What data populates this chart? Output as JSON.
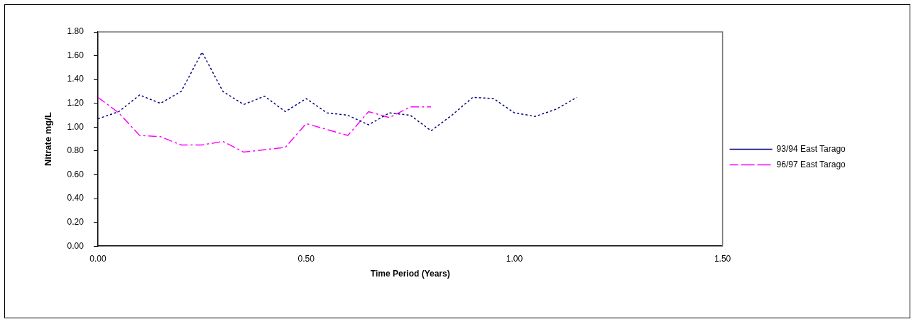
{
  "chart_data": {
    "type": "line",
    "xlabel": "Time Period (Years)",
    "ylabel": "Nitrate mg/L",
    "xlim": [
      0,
      1.5
    ],
    "xticks": [
      {
        "value": 0,
        "label": "0.00"
      },
      {
        "value": 0.5,
        "label": "0.50"
      },
      {
        "value": 1,
        "label": "1.00"
      },
      {
        "value": 1.5,
        "label": "1.50"
      }
    ],
    "ylim": [
      0,
      1.8
    ],
    "yticks": [
      {
        "value": 0,
        "label": "0.00"
      },
      {
        "value": 0.2,
        "label": "0.20"
      },
      {
        "value": 0.4,
        "label": "0.40"
      },
      {
        "value": 0.6,
        "label": "0.60"
      },
      {
        "value": 0.8,
        "label": "0.80"
      },
      {
        "value": 1,
        "label": "1.00"
      },
      {
        "value": 1.2,
        "label": "1.20"
      },
      {
        "value": 1.4,
        "label": "1.40"
      },
      {
        "value": 1.6,
        "label": "1.60"
      },
      {
        "value": 1.8,
        "label": "1.80"
      }
    ],
    "grid": false,
    "legend": "right",
    "marker": "none",
    "series": [
      {
        "name": "93/94 East Tarago",
        "color": "#000080",
        "line_style": "dotted",
        "x": [
          0,
          0.05,
          0.1,
          0.15,
          0.2,
          0.25,
          0.3,
          0.35,
          0.4,
          0.45,
          0.5,
          0.55,
          0.6,
          0.65,
          0.7,
          0.75,
          0.8,
          0.85,
          0.9,
          0.95,
          1,
          1.05,
          1.1,
          1.15
        ],
        "values": [
          1.07,
          1.13,
          1.27,
          1.2,
          1.3,
          1.63,
          1.3,
          1.19,
          1.26,
          1.13,
          1.24,
          1.12,
          1.1,
          1.02,
          1.12,
          1.1,
          0.97,
          1.1,
          1.25,
          1.24,
          1.12,
          1.09,
          1.15,
          1.25
        ]
      },
      {
        "name": "96/97 East Tarago",
        "color": "#ff00ff",
        "line_style": "dashed",
        "x": [
          0,
          0.05,
          0.1,
          0.15,
          0.2,
          0.25,
          0.3,
          0.35,
          0.4,
          0.45,
          0.5,
          0.55,
          0.6,
          0.65,
          0.7,
          0.75,
          0.8
        ],
        "values": [
          1.25,
          1.12,
          0.93,
          0.92,
          0.85,
          0.85,
          0.88,
          0.79,
          0.81,
          0.83,
          1.03,
          0.98,
          0.93,
          1.13,
          1.08,
          1.17,
          1.17
        ]
      }
    ]
  }
}
